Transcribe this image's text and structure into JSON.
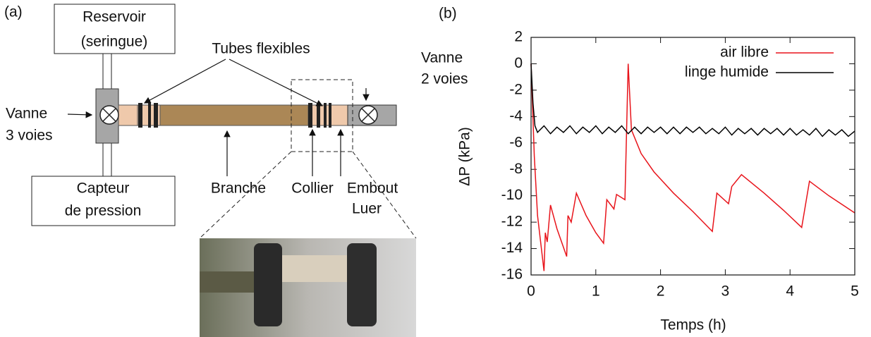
{
  "panel_a": {
    "label": "(a)",
    "reservoir": [
      "Reservoir",
      "(seringue)"
    ],
    "tubes": "Tubes flexibles",
    "valve_2": [
      "Vanne",
      "2 voies"
    ],
    "valve_3": [
      "Vanne",
      "3 voies"
    ],
    "sensor": [
      "Capteur",
      "de pression"
    ],
    "branch": "Branche",
    "collar": "Collier",
    "luer": [
      "Embout",
      "Luer"
    ]
  },
  "chart_data": {
    "type": "line",
    "panel_label": "(b)",
    "x_label": "Temps (h)",
    "y_label": "ΔP (kPa)",
    "xlim": [
      0,
      5
    ],
    "xticks": [
      0,
      1,
      2,
      3,
      4,
      5
    ],
    "ylim": [
      -16,
      2
    ],
    "yticks": [
      -16,
      -14,
      -12,
      -10,
      -8,
      -6,
      -4,
      -2,
      0,
      2
    ],
    "legend": "upper-right",
    "series": [
      {
        "name": "air libre",
        "color": "#e8141b",
        "x": [
          0,
          0.05,
          0.1,
          0.2,
          0.22,
          0.25,
          0.3,
          0.4,
          0.55,
          0.57,
          0.62,
          0.7,
          0.85,
          1.0,
          1.12,
          1.17,
          1.28,
          1.32,
          1.45,
          1.5,
          1.55,
          1.7,
          1.9,
          2.2,
          2.5,
          2.8,
          2.87,
          3.05,
          3.1,
          3.25,
          3.6,
          3.9,
          4.18,
          4.3,
          4.6,
          5
        ],
        "values": [
          0,
          -7,
          -11.5,
          -15.7,
          -12.8,
          -13.5,
          -10.7,
          -12.5,
          -14.6,
          -11.5,
          -12,
          -9.8,
          -11.5,
          -12.8,
          -13.6,
          -10.3,
          -11,
          -9.9,
          -10.3,
          0,
          -5,
          -6.8,
          -8.2,
          -9.8,
          -11.2,
          -12.7,
          -9.8,
          -10.6,
          -9.3,
          -8.4,
          -9.8,
          -11.1,
          -12.4,
          -8.9,
          -10,
          -11.3
        ]
      },
      {
        "name": "linge humide",
        "color": "#000000",
        "x": [
          0,
          0.03,
          0.06,
          0.1,
          0.2,
          0.3,
          0.4,
          0.5,
          0.6,
          0.7,
          0.8,
          0.9,
          1.0,
          1.1,
          1.2,
          1.3,
          1.4,
          1.5,
          1.6,
          1.7,
          1.8,
          1.9,
          2.0,
          2.1,
          2.2,
          2.3,
          2.4,
          2.5,
          2.6,
          2.7,
          2.8,
          2.9,
          3.0,
          3.1,
          3.2,
          3.3,
          3.4,
          3.5,
          3.6,
          3.7,
          3.8,
          3.9,
          4.0,
          4.1,
          4.2,
          4.3,
          4.4,
          4.5,
          4.6,
          4.7,
          4.8,
          4.9,
          5.0
        ],
        "values": [
          0,
          -3,
          -4.7,
          -5.2,
          -4.7,
          -5.3,
          -4.8,
          -5.2,
          -4.7,
          -5.3,
          -4.8,
          -5.2,
          -4.7,
          -5.3,
          -4.8,
          -5.2,
          -4.7,
          -5.3,
          -4.8,
          -5.3,
          -4.8,
          -5.2,
          -4.8,
          -5.3,
          -4.8,
          -5.3,
          -4.8,
          -5.2,
          -4.8,
          -5.3,
          -4.9,
          -5.3,
          -4.8,
          -5.4,
          -4.9,
          -5.3,
          -4.9,
          -5.4,
          -4.9,
          -5.3,
          -4.9,
          -5.4,
          -4.9,
          -5.4,
          -5.0,
          -5.4,
          -4.9,
          -5.5,
          -5.0,
          -5.4,
          -5.0,
          -5.5,
          -5.1
        ]
      }
    ]
  }
}
